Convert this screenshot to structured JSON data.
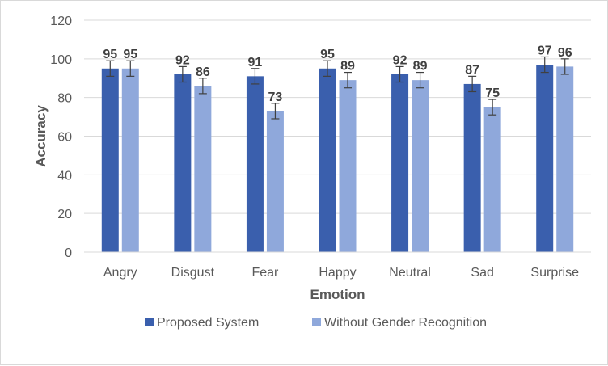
{
  "chart_data": {
    "type": "bar",
    "title": "",
    "xlabel": "Emotion",
    "ylabel": "Accuracy",
    "ylim": [
      0,
      120
    ],
    "yticks": [
      0,
      20,
      40,
      60,
      80,
      100,
      120
    ],
    "grid": true,
    "legend_position": "bottom",
    "categories": [
      "Angry",
      "Disgust",
      "Fear",
      "Happy",
      "Neutral",
      "Sad",
      "Surprise"
    ],
    "series": [
      {
        "name": "Proposed System",
        "color": "#3a5fad",
        "values": [
          95,
          92,
          91,
          95,
          92,
          87,
          97
        ],
        "error": [
          4,
          4,
          4,
          4,
          4,
          4,
          4
        ]
      },
      {
        "name": "Without Gender Recognition",
        "color": "#8fa8db",
        "values": [
          95,
          86,
          73,
          89,
          89,
          75,
          96
        ],
        "error": [
          4,
          4,
          4,
          4,
          4,
          4,
          4
        ]
      }
    ]
  }
}
